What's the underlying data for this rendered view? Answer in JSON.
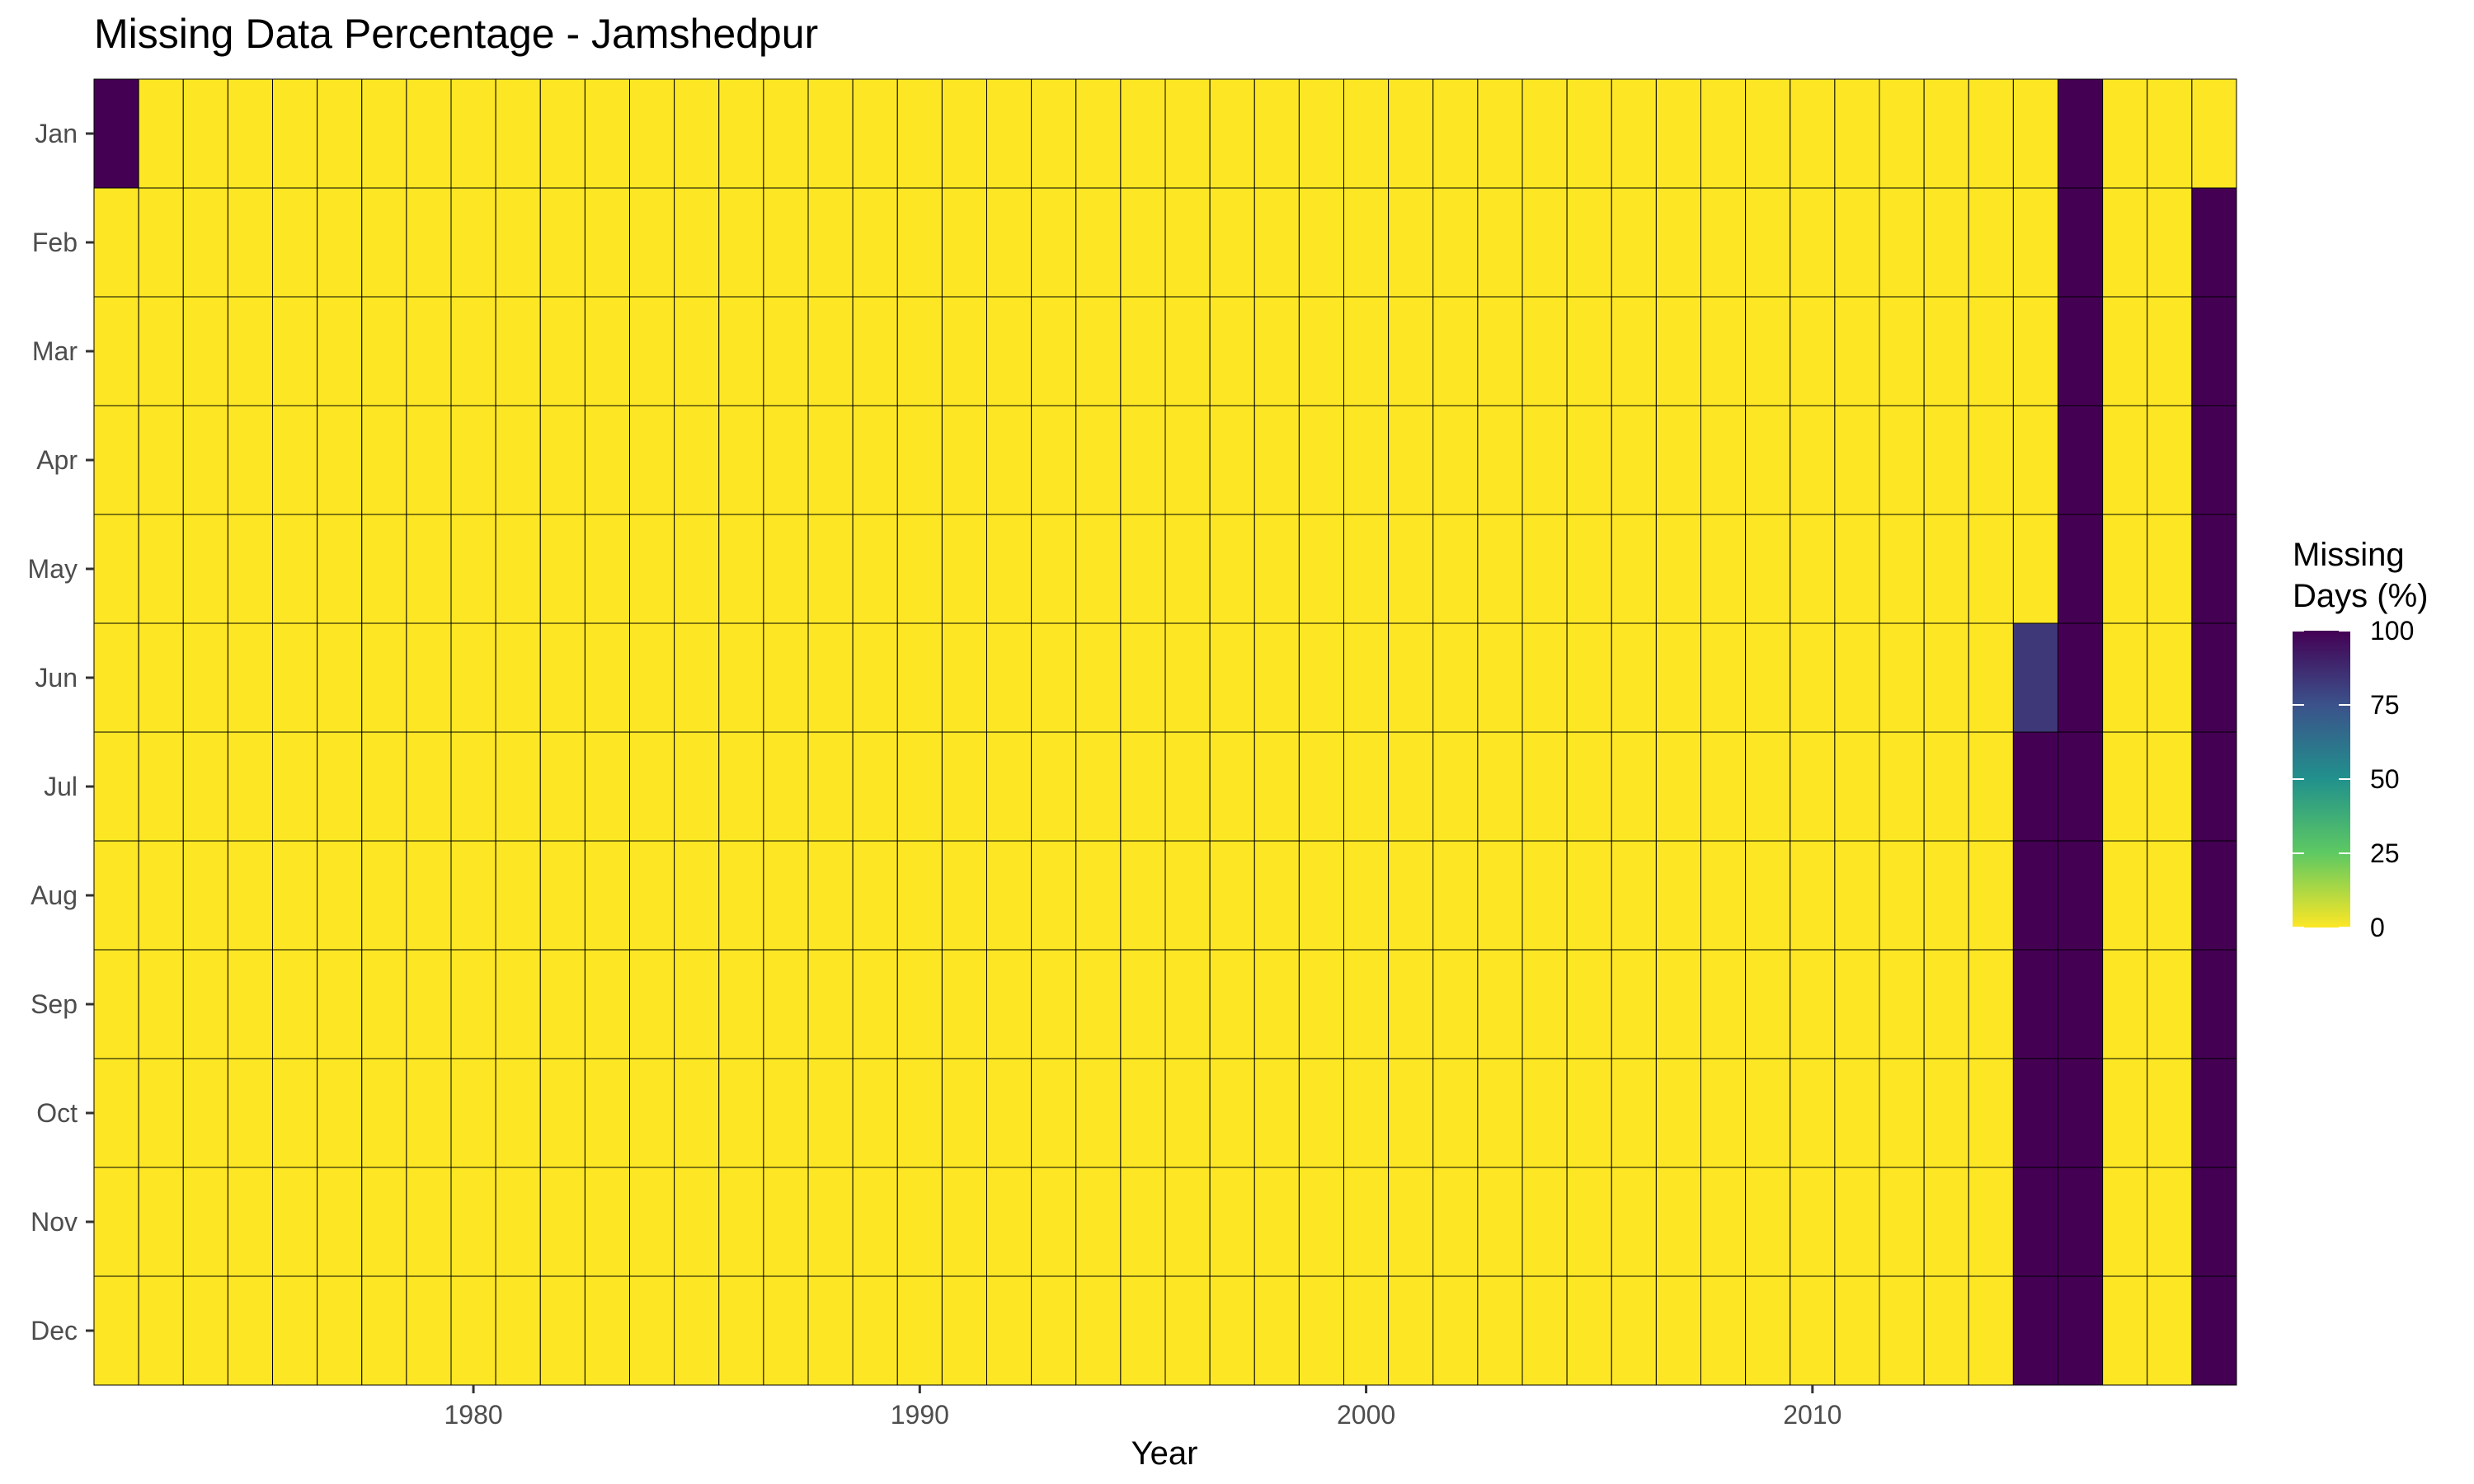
{
  "chart_data": {
    "type": "heatmap",
    "title": "Missing Data Percentage - Jamshedpur",
    "xlabel": "Year",
    "ylabel": "",
    "x_ticks": [
      1980,
      1990,
      2000,
      2010
    ],
    "years": [
      1972,
      1973,
      1974,
      1975,
      1976,
      1977,
      1978,
      1979,
      1980,
      1981,
      1982,
      1983,
      1984,
      1985,
      1986,
      1987,
      1988,
      1989,
      1990,
      1991,
      1992,
      1993,
      1994,
      1995,
      1996,
      1997,
      1998,
      1999,
      2000,
      2001,
      2002,
      2003,
      2004,
      2005,
      2006,
      2007,
      2008,
      2009,
      2010,
      2011,
      2012,
      2013,
      2014,
      2015,
      2016,
      2017,
      2018,
      2019
    ],
    "months": [
      "Jan",
      "Feb",
      "Mar",
      "Apr",
      "May",
      "Jun",
      "Jul",
      "Aug",
      "Sep",
      "Oct",
      "Nov",
      "Dec"
    ],
    "missing": [
      {
        "year": 1972,
        "month": "Jan",
        "value": 100
      },
      {
        "year": 2015,
        "month": "Jun",
        "value": 83
      },
      {
        "year": 2015,
        "month": "Jul",
        "value": 100
      },
      {
        "year": 2015,
        "month": "Aug",
        "value": 100
      },
      {
        "year": 2015,
        "month": "Sep",
        "value": 100
      },
      {
        "year": 2015,
        "month": "Oct",
        "value": 100
      },
      {
        "year": 2015,
        "month": "Nov",
        "value": 100
      },
      {
        "year": 2015,
        "month": "Dec",
        "value": 100
      },
      {
        "year": 2016,
        "month": "Jan",
        "value": 100
      },
      {
        "year": 2016,
        "month": "Feb",
        "value": 100
      },
      {
        "year": 2016,
        "month": "Mar",
        "value": 100
      },
      {
        "year": 2016,
        "month": "Apr",
        "value": 100
      },
      {
        "year": 2016,
        "month": "May",
        "value": 100
      },
      {
        "year": 2016,
        "month": "Jun",
        "value": 100
      },
      {
        "year": 2016,
        "month": "Jul",
        "value": 100
      },
      {
        "year": 2016,
        "month": "Aug",
        "value": 100
      },
      {
        "year": 2016,
        "month": "Sep",
        "value": 100
      },
      {
        "year": 2016,
        "month": "Oct",
        "value": 100
      },
      {
        "year": 2016,
        "month": "Nov",
        "value": 100
      },
      {
        "year": 2016,
        "month": "Dec",
        "value": 100
      },
      {
        "year": 2019,
        "month": "Feb",
        "value": 100
      },
      {
        "year": 2019,
        "month": "Mar",
        "value": 100
      },
      {
        "year": 2019,
        "month": "Apr",
        "value": 100
      },
      {
        "year": 2019,
        "month": "May",
        "value": 100
      },
      {
        "year": 2019,
        "month": "Jun",
        "value": 100
      },
      {
        "year": 2019,
        "month": "Jul",
        "value": 100
      },
      {
        "year": 2019,
        "month": "Aug",
        "value": 100
      },
      {
        "year": 2019,
        "month": "Sep",
        "value": 100
      },
      {
        "year": 2019,
        "month": "Oct",
        "value": 100
      },
      {
        "year": 2019,
        "month": "Nov",
        "value": 100
      },
      {
        "year": 2019,
        "month": "Dec",
        "value": 100
      }
    ],
    "default_value": 0,
    "value_range": [
      0,
      100
    ],
    "colorscale": "viridis (reversed: 0 = yellow, 100 = dark purple)",
    "colorscale_stops": [
      "#fde725",
      "#5ec962",
      "#21918c",
      "#3b528b",
      "#440154"
    ],
    "legend": {
      "title_lines": [
        "Missing",
        "Days (%)"
      ],
      "ticks": [
        0,
        25,
        50,
        75,
        100
      ],
      "position": "right"
    },
    "grid": false
  }
}
